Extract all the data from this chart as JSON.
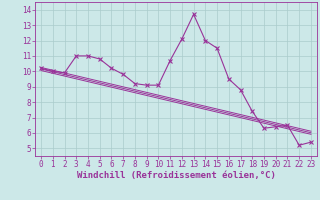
{
  "x": [
    0,
    1,
    2,
    3,
    4,
    5,
    6,
    7,
    8,
    9,
    10,
    11,
    12,
    13,
    14,
    15,
    16,
    17,
    18,
    19,
    20,
    21,
    22,
    23
  ],
  "series1": [
    10.2,
    10.0,
    9.9,
    11.0,
    11.0,
    10.8,
    10.2,
    9.8,
    9.2,
    9.1,
    9.1,
    10.7,
    12.1,
    13.7,
    12.0,
    11.5,
    9.5,
    8.8,
    7.4,
    6.3,
    6.4,
    6.5,
    5.2,
    5.4
  ],
  "linear1": [
    10.15,
    9.97,
    9.79,
    9.61,
    9.43,
    9.25,
    9.07,
    8.89,
    8.71,
    8.53,
    8.35,
    8.17,
    7.99,
    7.81,
    7.63,
    7.45,
    7.27,
    7.09,
    6.91,
    6.73,
    6.55,
    6.37,
    6.19,
    6.01
  ],
  "linear2": [
    10.05,
    9.87,
    9.69,
    9.51,
    9.33,
    9.15,
    8.97,
    8.79,
    8.61,
    8.43,
    8.25,
    8.07,
    7.89,
    7.71,
    7.53,
    7.35,
    7.17,
    6.99,
    6.81,
    6.63,
    6.45,
    6.27,
    6.09,
    5.91
  ],
  "linear3": [
    10.25,
    10.07,
    9.89,
    9.71,
    9.53,
    9.35,
    9.17,
    8.99,
    8.81,
    8.63,
    8.45,
    8.27,
    8.09,
    7.91,
    7.73,
    7.55,
    7.37,
    7.19,
    7.01,
    6.83,
    6.65,
    6.47,
    6.29,
    6.11
  ],
  "line_color": "#993399",
  "bg_color": "#cce8e8",
  "grid_color": "#aacccc",
  "xlabel": "Windchill (Refroidissement éolien,°C)",
  "xlim": [
    -0.5,
    23.5
  ],
  "ylim": [
    4.5,
    14.5
  ],
  "xticks": [
    0,
    1,
    2,
    3,
    4,
    5,
    6,
    7,
    8,
    9,
    10,
    11,
    12,
    13,
    14,
    15,
    16,
    17,
    18,
    19,
    20,
    21,
    22,
    23
  ],
  "yticks": [
    5,
    6,
    7,
    8,
    9,
    10,
    11,
    12,
    13,
    14
  ],
  "tick_fontsize": 5.5,
  "label_fontsize": 6.5
}
